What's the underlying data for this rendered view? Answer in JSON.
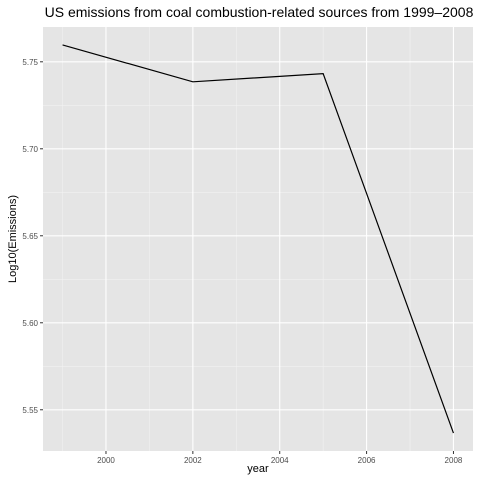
{
  "chart_data": {
    "type": "line",
    "title": "US emissions from coal combustion-related sources from 1999–2008",
    "xlabel": "year",
    "ylabel": "Log10(Emissions)",
    "x": [
      1999,
      2002,
      2005,
      2008
    ],
    "series": [
      {
        "values": [
          5.7597,
          5.7385,
          5.7432,
          5.5366
        ]
      }
    ],
    "xlim": [
      1998.55,
      2008.45
    ],
    "ylim": [
      5.5263,
      5.77
    ],
    "x_ticks": [
      2000,
      2002,
      2004,
      2006,
      2008
    ],
    "x_tick_labels": [
      "2000",
      "2002",
      "2004",
      "2006",
      "2008"
    ],
    "y_ticks": [
      5.55,
      5.6,
      5.65,
      5.7,
      5.75
    ],
    "y_tick_labels": [
      "5.55",
      "5.60",
      "5.65",
      "5.70",
      "5.75"
    ],
    "grid": true,
    "legend": "none",
    "colors": {
      "panel_background": "#e5e5e5",
      "grid_major": "#ffffff",
      "grid_minor": "#f2f2f2",
      "line": "#000000",
      "tick": "#333333",
      "tick_label": "#4d4d4d"
    }
  }
}
